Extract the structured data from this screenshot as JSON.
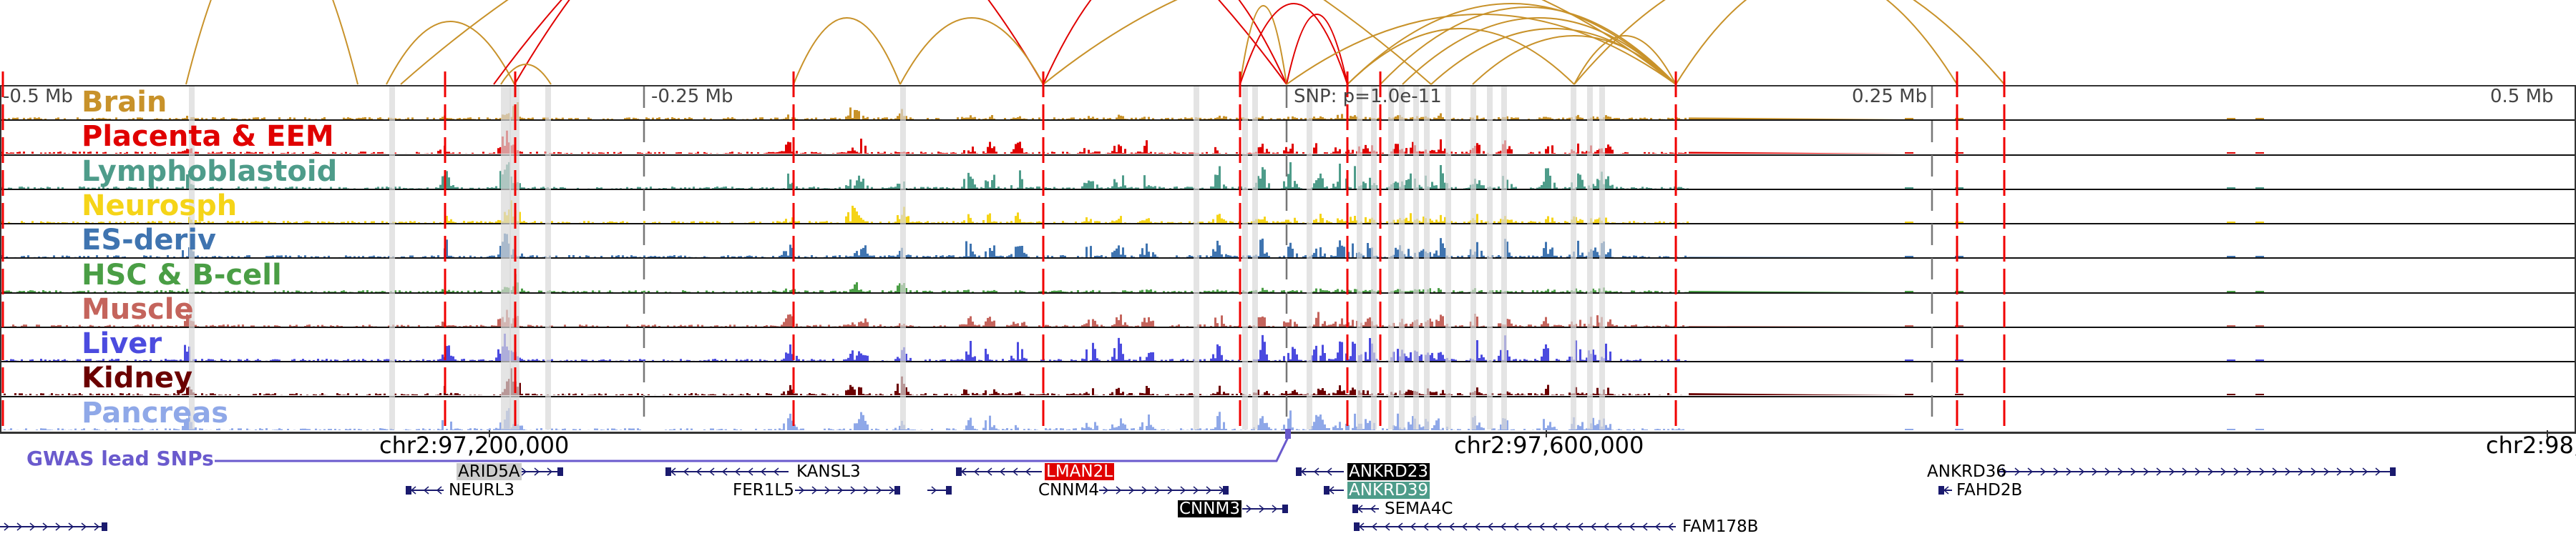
{
  "tracks": [
    {
      "label": "Brain",
      "color": "#c8922a"
    },
    {
      "label": "Placenta & EEM",
      "color": "#e00000"
    },
    {
      "label": "Lymphoblastoid",
      "color": "#4e9c8a"
    },
    {
      "label": "Neurosph",
      "color": "#f5d418"
    },
    {
      "label": "ES-deriv",
      "color": "#3f74b0"
    },
    {
      "label": "HSC & B-cell",
      "color": "#4a9e45"
    },
    {
      "label": "Muscle",
      "color": "#c4645c"
    },
    {
      "label": "Liver",
      "color": "#4b4bdf"
    },
    {
      "label": "Kidney",
      "color": "#6b0000"
    },
    {
      "label": "Pancreas",
      "color": "#8fa8e8"
    }
  ],
  "scale": {
    "left": "-0.5 Mb",
    "left_mid": "-0.25 Mb",
    "right_mid": "0.25 Mb",
    "right": "0.5 Mb"
  },
  "snp_label": "SNP: p=1.0e-11",
  "coords": [
    "chr2:97,200,000",
    "chr2:97,600,000",
    "chr2:98,"
  ],
  "gwas": {
    "label": "GWAS lead SNPs",
    "color": "#6a5acd"
  },
  "genes": [
    {
      "name": "ARID5A",
      "highlight": "#cccccc",
      "text": "#000000"
    },
    {
      "name": "NEURL3"
    },
    {
      "name": "KANSL3"
    },
    {
      "name": "FER1L5"
    },
    {
      "name": "LMAN2L",
      "highlight": "#e00000",
      "text": "#ffffff"
    },
    {
      "name": "CNNM4"
    },
    {
      "name": "CNNM3",
      "highlight": "#000000",
      "text": "#ffffff"
    },
    {
      "name": "ANKRD23",
      "highlight": "#000000",
      "text": "#ffffff"
    },
    {
      "name": "ANKRD39",
      "highlight": "#4e9c8a",
      "text": "#ffffff"
    },
    {
      "name": "SEMA4C"
    },
    {
      "name": "FAM178B"
    },
    {
      "name": "ANKRD36"
    },
    {
      "name": "FAHD2B"
    }
  ]
}
